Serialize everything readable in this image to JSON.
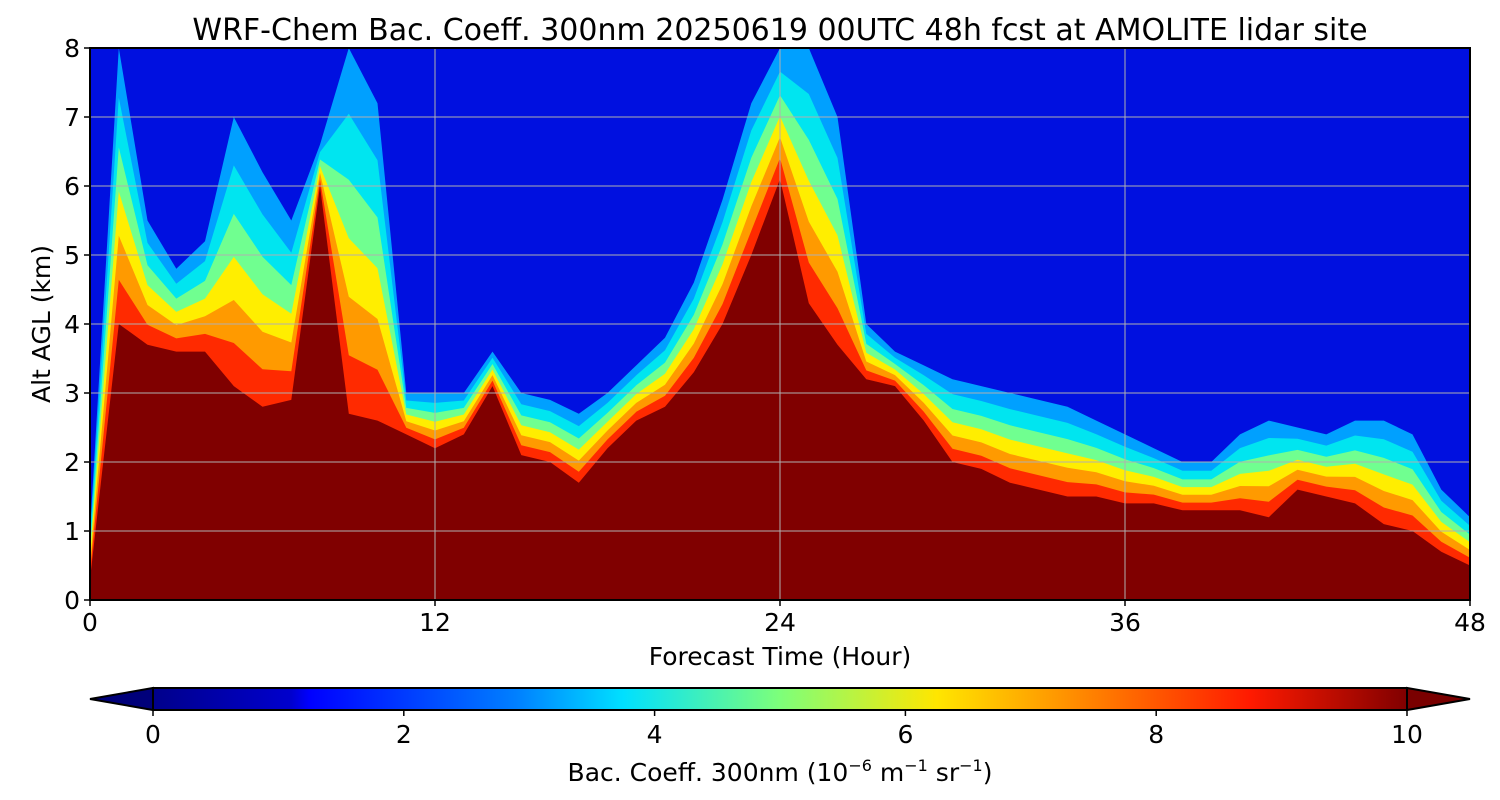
{
  "chart_data": {
    "type": "heatmap",
    "title": "WRF-Chem Bac. Coeff. 300nm  20250619 00UTC 48h fcst at AMOLITE lidar site",
    "xlabel": "Forecast Time (Hour)",
    "ylabel": "Alt AGL (km)",
    "xlim": [
      0,
      48
    ],
    "ylim": [
      0,
      8
    ],
    "x_ticks": [
      "0",
      "12",
      "24",
      "36",
      "48"
    ],
    "y_ticks": [
      "0",
      "1",
      "2",
      "3",
      "4",
      "5",
      "6",
      "7",
      "8"
    ],
    "grid": true,
    "colormap": "jet",
    "colorbar": {
      "label_main": "Bac. Coeff. 300nm  (10",
      "label_exp1": "−6",
      "label_mid": " m",
      "label_exp2": "−1",
      "label_mid2": " sr",
      "label_exp3": "−1",
      "label_end": ")",
      "range": [
        0,
        10
      ],
      "extend": "both",
      "ticks": [
        "0",
        "2",
        "4",
        "6",
        "8",
        "10"
      ],
      "placement": "bottom"
    },
    "units": "10^-6 m^-1 sr^-1",
    "z_scale_km": [
      0,
      0.5,
      1,
      1.5,
      2,
      2.5,
      3,
      3.5,
      4,
      4.5,
      5,
      5.5,
      6,
      6.5,
      7,
      7.5,
      8
    ],
    "x_hours": [
      0,
      1,
      2,
      3,
      4,
      5,
      6,
      7,
      8,
      9,
      10,
      11,
      12,
      13,
      14,
      15,
      16,
      17,
      18,
      19,
      20,
      21,
      22,
      23,
      24,
      25,
      26,
      27,
      28,
      29,
      30,
      31,
      32,
      33,
      34,
      35,
      36,
      37,
      38,
      39,
      40,
      41,
      42,
      43,
      44,
      45,
      46,
      47,
      48
    ],
    "saturation_top_km": [
      0.3,
      4.0,
      3.7,
      3.6,
      3.6,
      3.1,
      2.8,
      2.9,
      6.0,
      2.7,
      2.6,
      2.4,
      2.2,
      2.4,
      3.1,
      2.1,
      2.0,
      1.7,
      2.2,
      2.6,
      2.8,
      3.3,
      4.0,
      5.0,
      6.1,
      4.3,
      3.7,
      3.2,
      3.1,
      2.6,
      2.0,
      1.9,
      1.7,
      1.6,
      1.5,
      1.5,
      1.4,
      1.4,
      1.3,
      1.3,
      1.3,
      1.2,
      1.6,
      1.5,
      1.4,
      1.1,
      1.0,
      0.7,
      0.5
    ],
    "plume_top_km": [
      1.0,
      8.0,
      5.5,
      4.8,
      5.2,
      7.0,
      6.2,
      5.5,
      6.6,
      8.0,
      7.2,
      3.0,
      3.0,
      3.0,
      3.6,
      3.0,
      2.9,
      2.7,
      3.0,
      3.4,
      3.8,
      4.6,
      5.8,
      7.2,
      8.0,
      8.0,
      7.0,
      4.0,
      3.6,
      3.4,
      3.2,
      3.1,
      3.0,
      2.9,
      2.8,
      2.6,
      2.4,
      2.2,
      2.0,
      2.0,
      2.4,
      2.6,
      2.5,
      2.4,
      2.6,
      2.6,
      2.4,
      1.6,
      1.2
    ]
  }
}
